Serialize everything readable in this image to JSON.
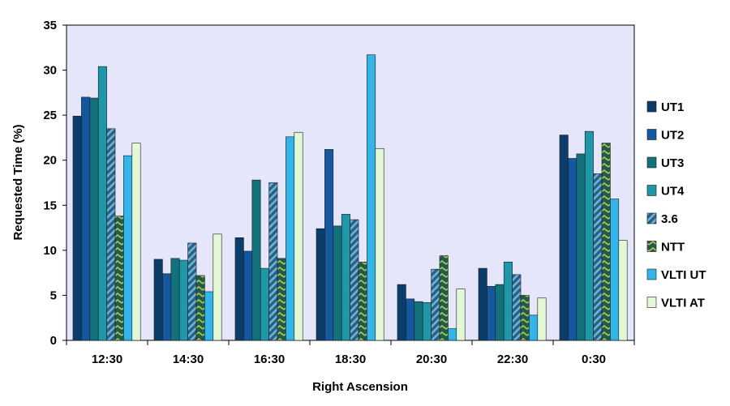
{
  "chart_data": {
    "type": "bar",
    "title": "",
    "xlabel": "Right Ascension",
    "ylabel": "Requested Time (%)",
    "ylim": [
      0,
      35
    ],
    "yticks": [
      0,
      5,
      10,
      15,
      20,
      25,
      30,
      35
    ],
    "y_tick_labels": [
      "0",
      "5",
      "10",
      "15",
      "20",
      "25",
      "30",
      "35"
    ],
    "categories": [
      "12:30",
      "14:30",
      "16:30",
      "18:30",
      "20:30",
      "22:30",
      "0:30"
    ],
    "plot_background": "#E6E6FA",
    "grid": false,
    "legend_position": "right",
    "series": [
      {
        "name": "UT1",
        "color": "#0B3D6B",
        "pattern": "solid",
        "values": [
          24.9,
          9.0,
          11.4,
          12.4,
          6.2,
          8.0,
          22.8
        ]
      },
      {
        "name": "UT2",
        "color": "#1558A0",
        "pattern": "solid",
        "values": [
          27.0,
          7.4,
          9.9,
          21.2,
          4.6,
          6.0,
          20.2
        ]
      },
      {
        "name": "UT3",
        "color": "#12717A",
        "pattern": "solid",
        "values": [
          26.9,
          9.1,
          17.8,
          12.7,
          4.3,
          6.2,
          20.7
        ]
      },
      {
        "name": "UT4",
        "color": "#1E97A8",
        "pattern": "solid",
        "values": [
          30.4,
          8.9,
          8.0,
          14.0,
          4.2,
          8.7,
          23.2
        ]
      },
      {
        "name": "3.6",
        "color": "#2A5F8F",
        "pattern": "diagonal",
        "values": [
          23.5,
          10.8,
          17.5,
          13.4,
          7.9,
          7.3,
          18.5
        ]
      },
      {
        "name": "NTT",
        "color": "#1F5C50",
        "pattern": "chevron",
        "values": [
          13.8,
          7.2,
          9.1,
          8.7,
          9.4,
          5.0,
          21.9
        ]
      },
      {
        "name": "VLTI UT",
        "color": "#33B5EA",
        "pattern": "solid",
        "values": [
          20.5,
          5.4,
          22.6,
          31.7,
          1.3,
          2.8,
          15.7
        ]
      },
      {
        "name": "VLTI AT",
        "color": "#E3F9D6",
        "pattern": "solid",
        "values": [
          21.9,
          11.8,
          23.1,
          21.3,
          5.7,
          4.7,
          11.1
        ]
      }
    ]
  }
}
